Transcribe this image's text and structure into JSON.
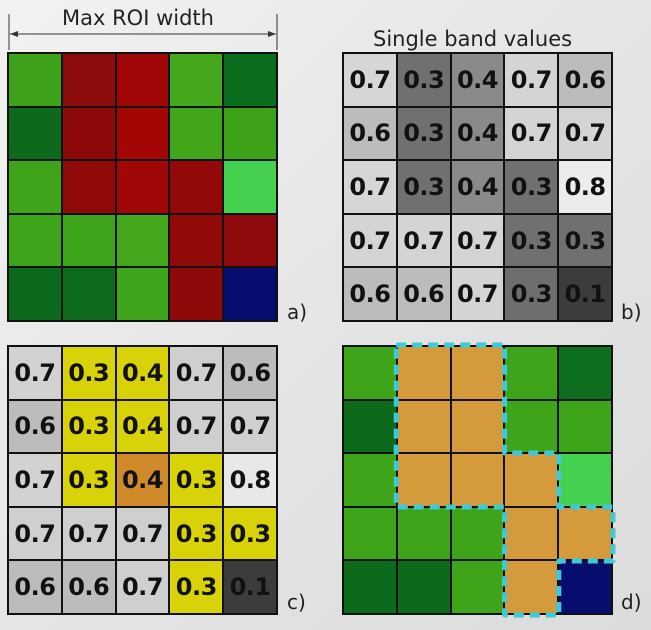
{
  "panels": {
    "a": {
      "title": "Max ROI width",
      "label": "a)",
      "colors": [
        [
          "#3ea31a",
          "#8c0b0b",
          "#a10606",
          "#44a81c",
          "#0a6e1e"
        ],
        [
          "#0d6a1c",
          "#8e0a0a",
          "#a40606",
          "#42a61b",
          "#3fa31a"
        ],
        [
          "#3ea51a",
          "#900a0a",
          "#a00707",
          "#930909",
          "#44d14f"
        ],
        [
          "#3ea51a",
          "#3ea51a",
          "#44a81c",
          "#900a0a",
          "#8f0a0a"
        ],
        [
          "#0c6a1c",
          "#0e6b1d",
          "#3fa51a",
          "#8e0a0a",
          "#060d6e"
        ]
      ]
    },
    "b": {
      "title": "Single band values",
      "label": "b)",
      "values": [
        [
          "0.7",
          "0.3",
          "0.4",
          "0.7",
          "0.6"
        ],
        [
          "0.6",
          "0.3",
          "0.4",
          "0.7",
          "0.7"
        ],
        [
          "0.7",
          "0.3",
          "0.4",
          "0.3",
          "0.8"
        ],
        [
          "0.7",
          "0.7",
          "0.7",
          "0.3",
          "0.3"
        ],
        [
          "0.6",
          "0.6",
          "0.7",
          "0.3",
          "0.1"
        ]
      ],
      "colors": [
        [
          "#d6d6d6",
          "#707070",
          "#8a8a8a",
          "#d4d4d4",
          "#bcbcbc"
        ],
        [
          "#bcbcbc",
          "#707070",
          "#8a8a8a",
          "#d4d4d4",
          "#d4d4d4"
        ],
        [
          "#d6d6d6",
          "#707070",
          "#8a8a8a",
          "#707070",
          "#ececec"
        ],
        [
          "#d4d4d4",
          "#d4d4d4",
          "#d4d4d4",
          "#707070",
          "#707070"
        ],
        [
          "#bcbcbc",
          "#bcbcbc",
          "#d4d4d4",
          "#6e6e6e",
          "#3c3c3c"
        ]
      ]
    },
    "c": {
      "label": "c)",
      "values": [
        [
          "0.7",
          "0.3",
          "0.4",
          "0.7",
          "0.6"
        ],
        [
          "0.6",
          "0.3",
          "0.4",
          "0.7",
          "0.7"
        ],
        [
          "0.7",
          "0.3",
          "0.4",
          "0.3",
          "0.8"
        ],
        [
          "0.7",
          "0.7",
          "0.7",
          "0.3",
          "0.3"
        ],
        [
          "0.6",
          "0.6",
          "0.7",
          "0.3",
          "0.1"
        ]
      ],
      "colors": [
        [
          "#d2d2d2",
          "#d8d208",
          "#d8d208",
          "#cfcfcf",
          "#bcbcbc"
        ],
        [
          "#bcbcbc",
          "#d8d208",
          "#d8d208",
          "#cfcfcf",
          "#cfcfcf"
        ],
        [
          "#d2d2d2",
          "#d8d208",
          "#d08a2a",
          "#d8d208",
          "#e8e8e8"
        ],
        [
          "#cfcfcf",
          "#cfcfcf",
          "#cfcfcf",
          "#d8d208",
          "#d8d208"
        ],
        [
          "#bcbcbc",
          "#bcbcbc",
          "#cfcfcf",
          "#d8d208",
          "#3c3c3c"
        ]
      ]
    },
    "d": {
      "label": "d)",
      "colors": [
        [
          "#3ea51a",
          "#d49a3c",
          "#d49a3c",
          "#3ea51a",
          "#0c6e1e"
        ],
        [
          "#0c6a1c",
          "#d49a3c",
          "#d49a3c",
          "#3ea51a",
          "#3ea51a"
        ],
        [
          "#3ea51a",
          "#d49a3c",
          "#d49a3c",
          "#d49a3c",
          "#44d14f"
        ],
        [
          "#3ea51a",
          "#3ea51a",
          "#3ea51a",
          "#d49a3c",
          "#d49a3c"
        ],
        [
          "#0c6a1c",
          "#0c6a1c",
          "#3ea51a",
          "#d49a3c",
          "#060d6e"
        ]
      ],
      "outline_color": "#40c8d8"
    }
  }
}
